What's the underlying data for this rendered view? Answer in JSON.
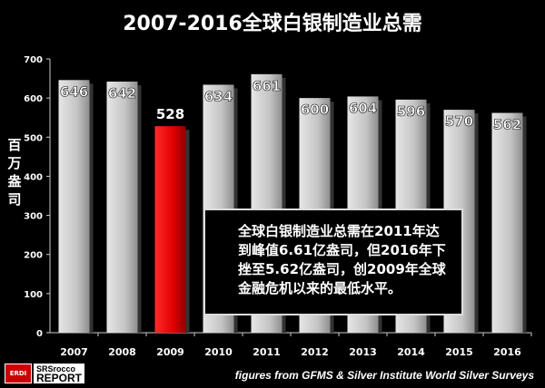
{
  "chart_data": {
    "type": "bar",
    "title": "2007-2016全球白银制造业总需",
    "ylabel": "百万盎司",
    "xlabel": "",
    "categories": [
      "2007",
      "2008",
      "2009",
      "2010",
      "2011",
      "2012",
      "2013",
      "2014",
      "2015",
      "2016"
    ],
    "values": [
      646,
      642,
      528,
      634,
      661,
      600,
      604,
      596,
      570,
      562
    ],
    "data_labels": [
      "646",
      "642",
      "528",
      "634",
      "661",
      "600",
      "604",
      "596",
      "570",
      "562"
    ],
    "ylim": [
      0,
      700
    ],
    "yticks": [
      "0",
      "100",
      "200",
      "300",
      "400",
      "500",
      "600",
      "700"
    ],
    "grid": false,
    "highlight_index": 2,
    "colors": {
      "bar": "#c8c8c8",
      "highlight": "#e00000",
      "background": "#000000"
    },
    "annotation": "全球白银制造业总需在2011年达到峰值6.61亿盎司，但2016年下挫至5.62亿盎司，创2009年全球金融危机以来的最低水平。"
  },
  "logo": {
    "badge": "ERDI",
    "line1": "SRSrocco",
    "line2": "REPORT"
  },
  "source": "figures from GFMS & Silver Institute World Silver Surveys"
}
